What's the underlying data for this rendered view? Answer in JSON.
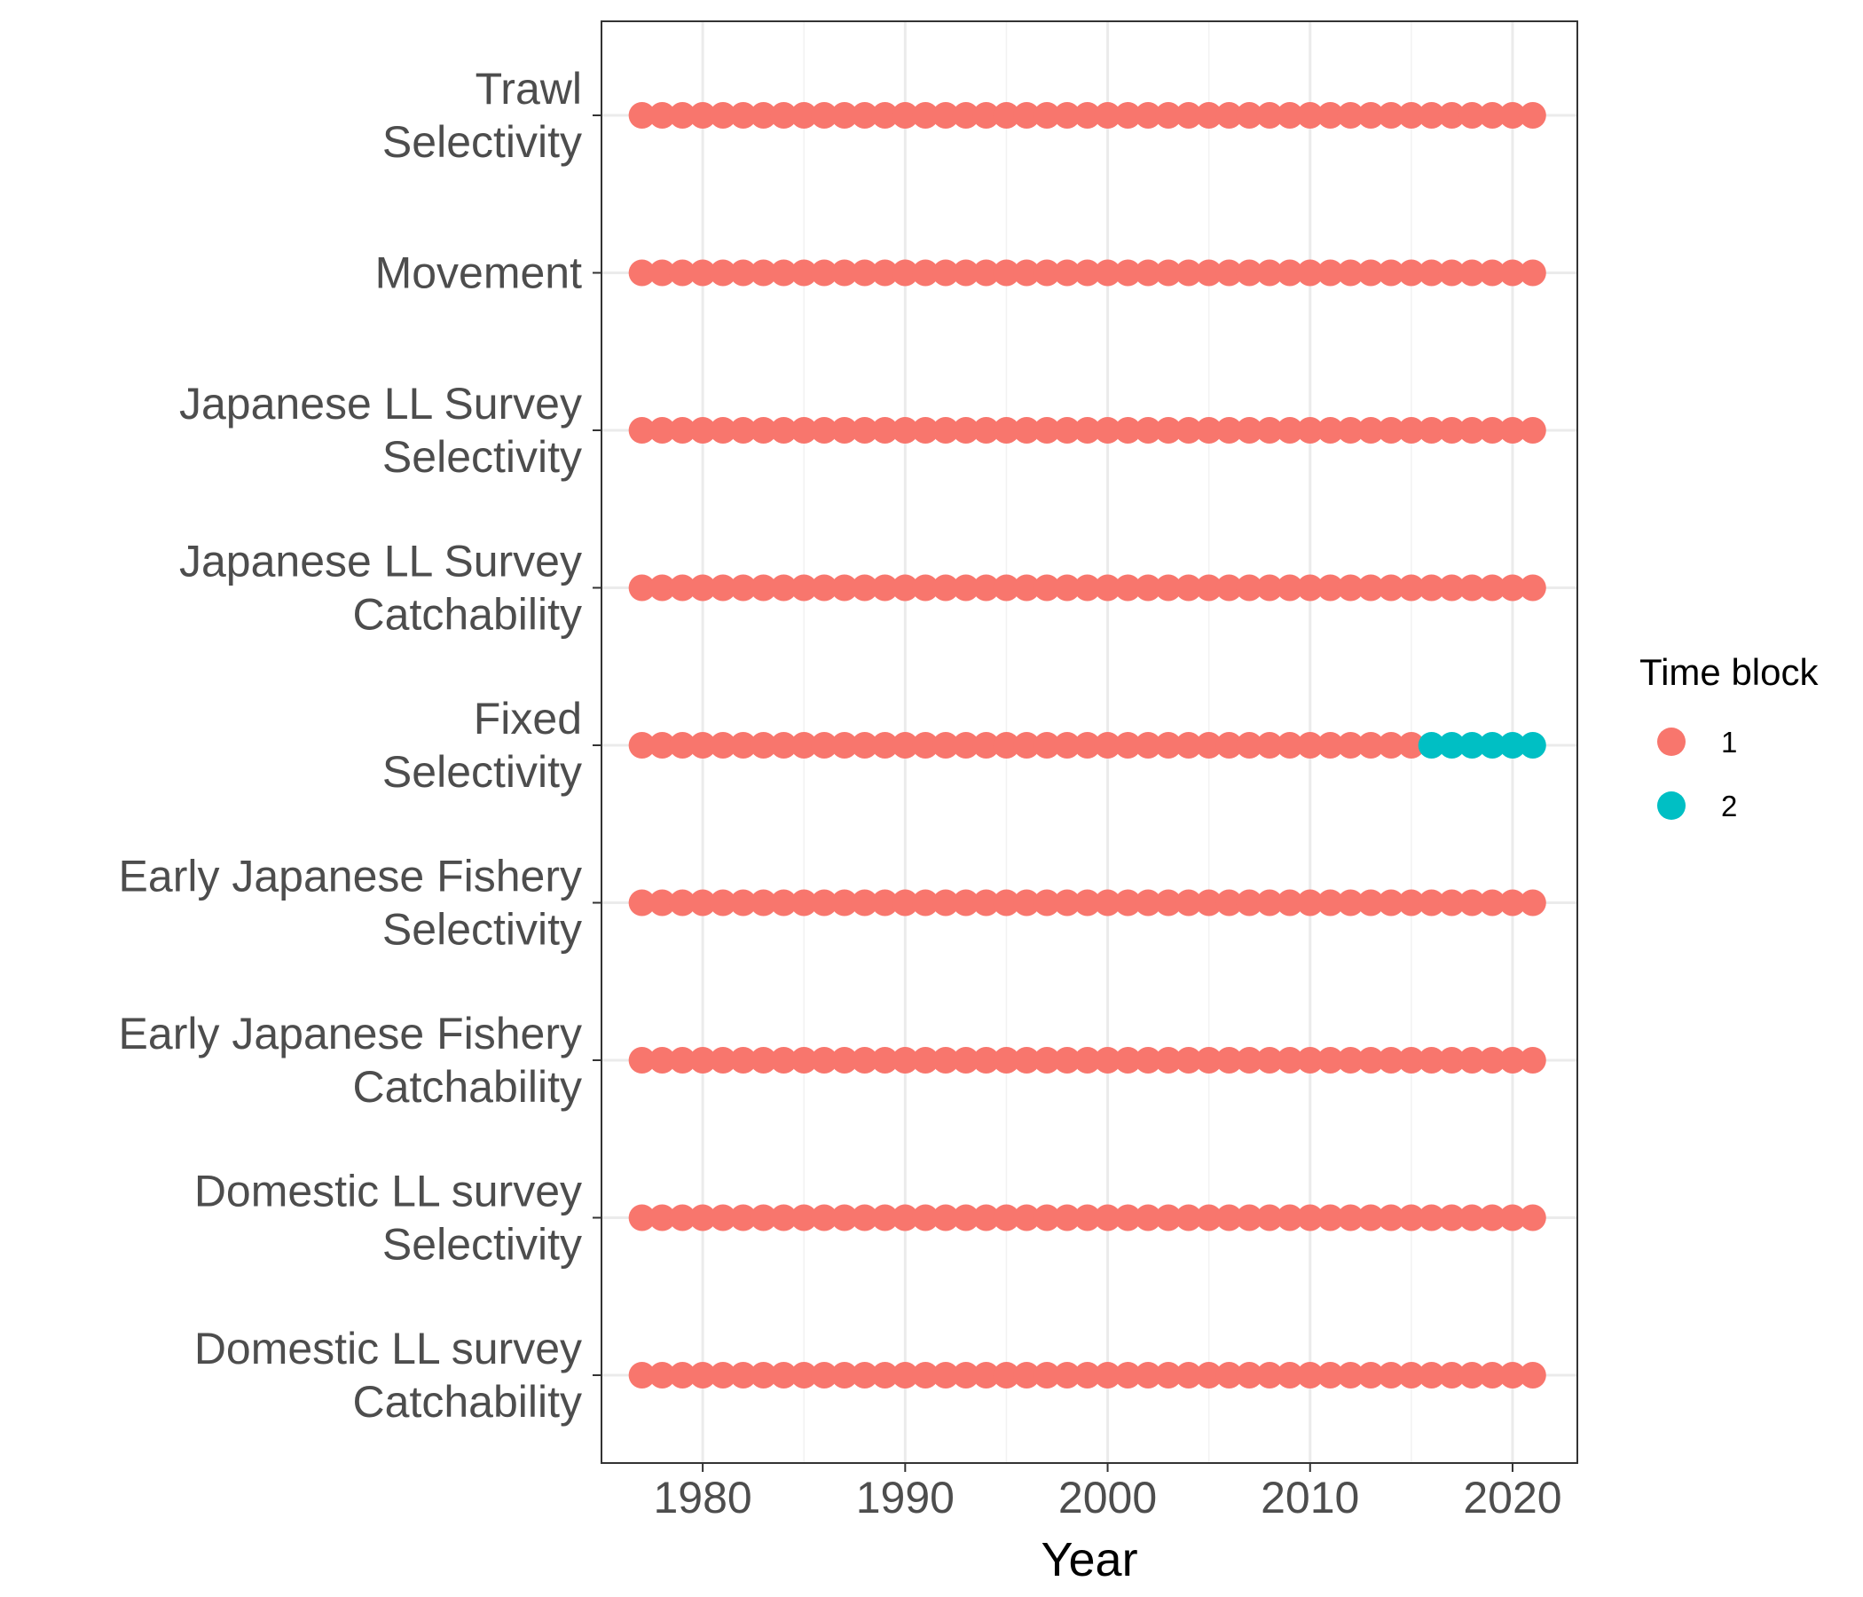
{
  "chart_data": {
    "type": "scatter",
    "title": "",
    "xlabel": "Year",
    "ylabel": "",
    "xlim": [
      1975,
      2023.2
    ],
    "x_ticks": [
      1980,
      1990,
      2000,
      2010,
      2020
    ],
    "x_tick_labels": [
      "1980",
      "1990",
      "2000",
      "2010",
      "2020"
    ],
    "year_range": [
      1977,
      2021
    ],
    "grid": true,
    "categories": [
      [
        "Trawl",
        "Selectivity"
      ],
      [
        "Movement"
      ],
      [
        "Japanese LL Survey",
        "Selectivity"
      ],
      [
        "Japanese LL Survey",
        "Catchability"
      ],
      [
        "Fixed",
        "Selectivity"
      ],
      [
        "Early Japanese Fishery",
        "Selectivity"
      ],
      [
        "Early Japanese Fishery",
        "Catchability"
      ],
      [
        "Domestic LL survey",
        "Selectivity"
      ],
      [
        "Domestic LL survey",
        "Catchability"
      ]
    ],
    "series": [
      {
        "name": "1",
        "color": "#F8766D",
        "points": [
          {
            "category": 0,
            "from": 1977,
            "to": 2021
          },
          {
            "category": 1,
            "from": 1977,
            "to": 2021
          },
          {
            "category": 2,
            "from": 1977,
            "to": 2021
          },
          {
            "category": 3,
            "from": 1977,
            "to": 2021
          },
          {
            "category": 4,
            "from": 1977,
            "to": 2015
          },
          {
            "category": 5,
            "from": 1977,
            "to": 2021
          },
          {
            "category": 6,
            "from": 1977,
            "to": 2021
          },
          {
            "category": 7,
            "from": 1977,
            "to": 2021
          },
          {
            "category": 8,
            "from": 1977,
            "to": 2021
          }
        ]
      },
      {
        "name": "2",
        "color": "#00BFC4",
        "points": [
          {
            "category": 4,
            "from": 2016,
            "to": 2021
          }
        ]
      }
    ],
    "legend": {
      "title": "Time block",
      "position": "right",
      "items": [
        "1",
        "2"
      ]
    }
  }
}
